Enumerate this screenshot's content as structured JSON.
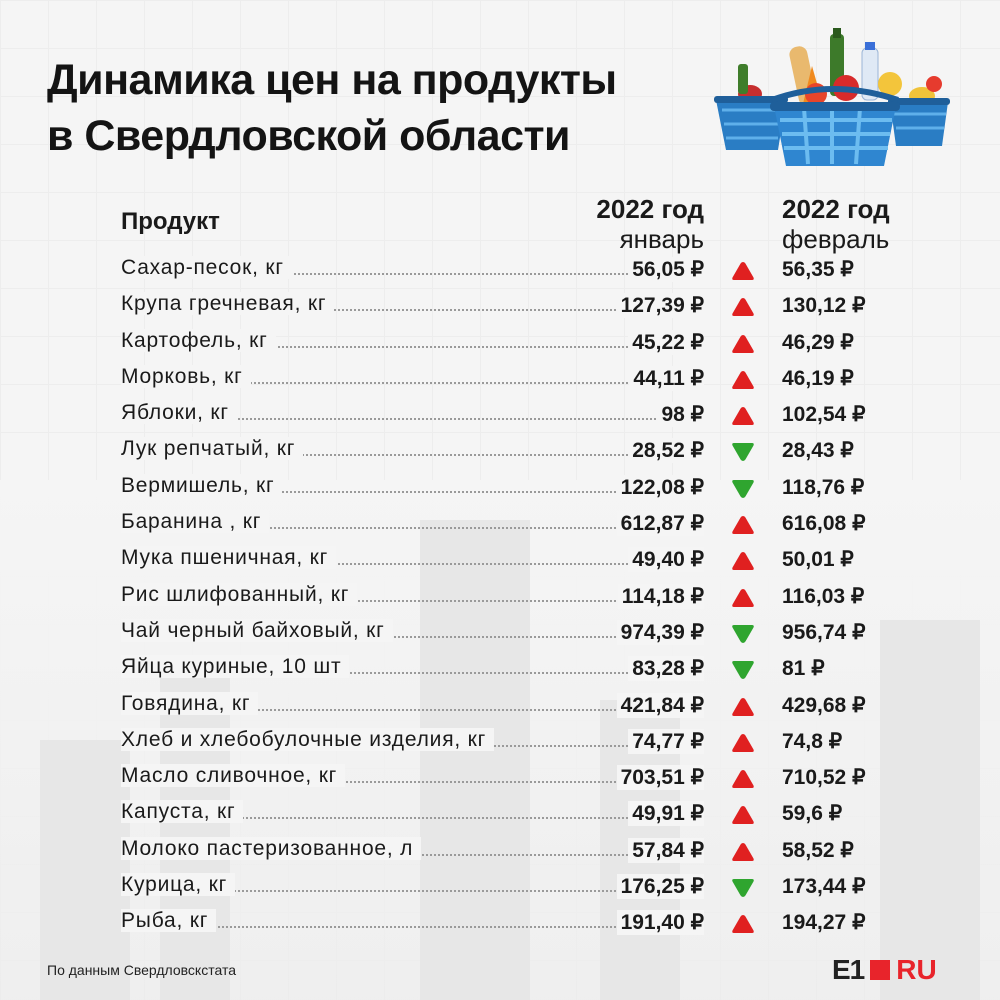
{
  "title": {
    "line1": "Динамика цен на продукты",
    "line2": "в Свердловской области"
  },
  "header": {
    "product": "Продукт",
    "jan_year": "2022 год",
    "jan_month": "январь",
    "feb_year": "2022 год",
    "feb_month": "февраль"
  },
  "source": "По данным Свердловскстата",
  "logo": {
    "left": "E1",
    "right": "RU",
    "accent": "#e8242b"
  },
  "colors": {
    "up": "#e02020",
    "down": "#2fa52f"
  },
  "chart_data": {
    "type": "table",
    "columns": [
      "Продукт",
      "2022 год январь",
      "2022 год февраль"
    ],
    "rows": [
      {
        "name": "Сахар-песок, кг",
        "jan": "56,05 ₽",
        "feb": "56,35 ₽",
        "trend": "up"
      },
      {
        "name": "Крупа гречневая, кг",
        "jan": "127,39 ₽",
        "feb": "130,12 ₽",
        "trend": "up"
      },
      {
        "name": "Картофель, кг",
        "jan": "45,22 ₽",
        "feb": "46,29 ₽",
        "trend": "up"
      },
      {
        "name": "Морковь, кг",
        "jan": "44,11 ₽",
        "feb": "46,19 ₽",
        "trend": "up"
      },
      {
        "name": "Яблоки, кг",
        "jan": "98 ₽",
        "feb": "102,54 ₽",
        "trend": "up"
      },
      {
        "name": "Лук репчатый, кг",
        "jan": "28,52 ₽",
        "feb": "28,43 ₽",
        "trend": "down"
      },
      {
        "name": "Вермишель, кг",
        "jan": "122,08 ₽",
        "feb": "118,76 ₽",
        "trend": "down"
      },
      {
        "name": "Баранина , кг",
        "jan": "612,87 ₽",
        "feb": "616,08 ₽",
        "trend": "up"
      },
      {
        "name": "Мука пшеничная, кг",
        "jan": "49,40 ₽",
        "feb": "50,01 ₽",
        "trend": "up"
      },
      {
        "name": "Рис шлифованный, кг",
        "jan": "114,18 ₽",
        "feb": "116,03 ₽",
        "trend": "up"
      },
      {
        "name": "Чай черный байховый, кг",
        "jan": "974,39 ₽",
        "feb": "956,74 ₽",
        "trend": "down"
      },
      {
        "name": "Яйца куриные, 10 шт",
        "jan": "83,28 ₽",
        "feb": "81 ₽",
        "trend": "down"
      },
      {
        "name": "Говядина, кг",
        "jan": "421,84 ₽",
        "feb": "429,68 ₽",
        "trend": "up"
      },
      {
        "name": "Хлеб и хлебобулочные изделия, кг",
        "jan": "74,77 ₽",
        "feb": "74,8 ₽",
        "trend": "up"
      },
      {
        "name": "Масло сливочное, кг",
        "jan": "703,51 ₽",
        "feb": "710,52 ₽",
        "trend": "up"
      },
      {
        "name": "Капуста, кг",
        "jan": "49,91 ₽",
        "feb": "59,6 ₽",
        "trend": "up"
      },
      {
        "name": "Молоко пастеризованное, л",
        "jan": "57,84 ₽",
        "feb": "58,52 ₽",
        "trend": "up"
      },
      {
        "name": "Курица, кг",
        "jan": "176,25 ₽",
        "feb": "173,44 ₽",
        "trend": "down"
      },
      {
        "name": "Рыба, кг",
        "jan": "191,40 ₽",
        "feb": "194,27 ₽",
        "trend": "up"
      }
    ]
  }
}
